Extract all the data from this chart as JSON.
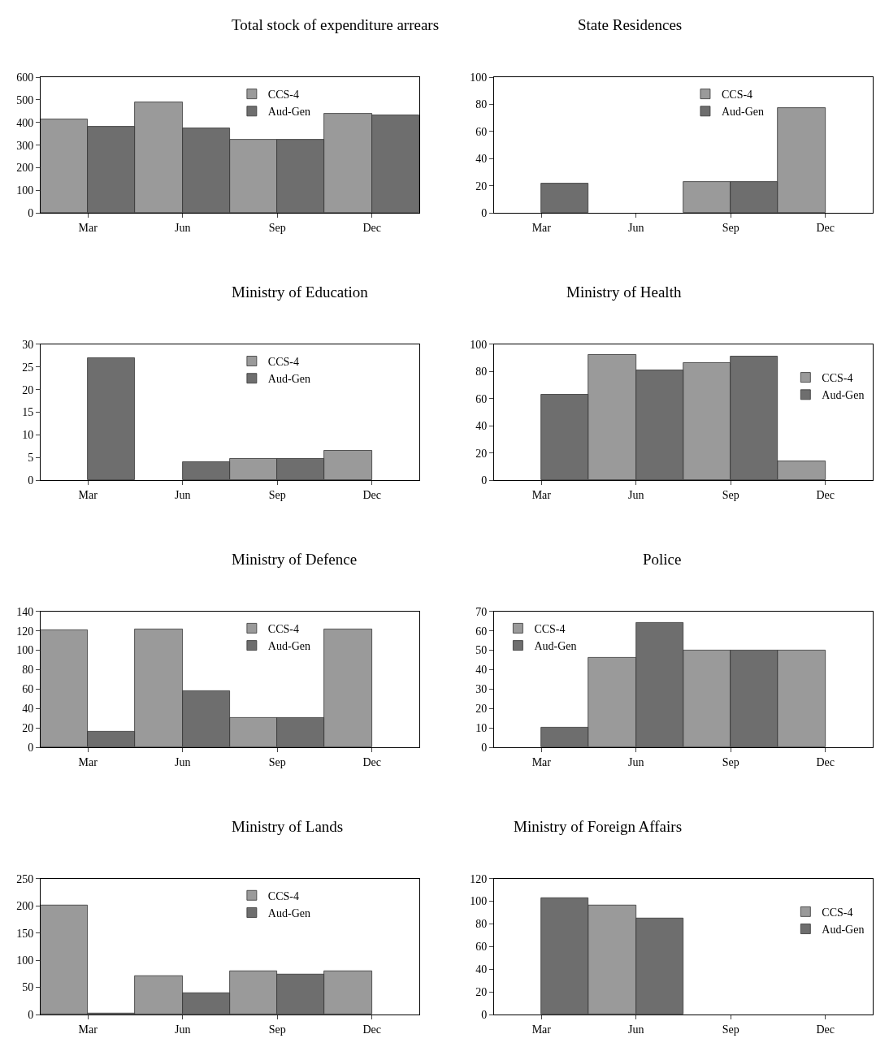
{
  "chart_data": [
    {
      "type": "bar",
      "title": "Total stock of expenditure arrears",
      "categories": [
        "Mar",
        "Jun",
        "Sep",
        "Dec"
      ],
      "ylim": [
        0,
        600
      ],
      "yticks": [
        0,
        100,
        200,
        300,
        400,
        500,
        600
      ],
      "legend": "top",
      "series": [
        {
          "name": "CCS-4",
          "color": "#9a9a9a",
          "values": [
            415,
            490,
            325,
            440
          ]
        },
        {
          "name": "Aud-Gen",
          "color": "#6e6e6e",
          "values": [
            380,
            375,
            325,
            430
          ]
        }
      ]
    },
    {
      "type": "bar",
      "title": "State Residences",
      "categories": [
        "Mar",
        "Jun",
        "Sep",
        "Dec"
      ],
      "ylim": [
        0,
        100
      ],
      "yticks": [
        0,
        20,
        40,
        60,
        80,
        100
      ],
      "legend": "top",
      "series": [
        {
          "name": "CCS-4",
          "color": "#9a9a9a",
          "values": [
            null,
            null,
            23,
            77
          ]
        },
        {
          "name": "Aud-Gen",
          "color": "#6e6e6e",
          "values": [
            22,
            null,
            23,
            null
          ]
        }
      ]
    },
    {
      "type": "bar",
      "title": "Ministry of Education",
      "categories": [
        "Mar",
        "Jun",
        "Sep",
        "Dec"
      ],
      "ylim": [
        0,
        30
      ],
      "yticks": [
        0,
        5,
        10,
        15,
        20,
        25,
        30
      ],
      "legend": "top",
      "series": [
        {
          "name": "CCS-4",
          "color": "#9a9a9a",
          "values": [
            null,
            null,
            4.7,
            6.5
          ]
        },
        {
          "name": "Aud-Gen",
          "color": "#6e6e6e",
          "values": [
            27,
            4,
            4.7,
            null
          ]
        }
      ]
    },
    {
      "type": "bar",
      "title": "Ministry of Health",
      "categories": [
        "Mar",
        "Jun",
        "Sep",
        "Dec"
      ],
      "ylim": [
        0,
        100
      ],
      "yticks": [
        0,
        20,
        40,
        60,
        80,
        100
      ],
      "legend": "top right",
      "series": [
        {
          "name": "CCS-4",
          "color": "#9a9a9a",
          "values": [
            null,
            92,
            86,
            14
          ]
        },
        {
          "name": "Aud-Gen",
          "color": "#6e6e6e",
          "values": [
            63,
            81,
            91,
            null
          ]
        }
      ]
    },
    {
      "type": "bar",
      "title": "Ministry of Defence",
      "categories": [
        "Mar",
        "Jun",
        "Sep",
        "Dec"
      ],
      "ylim": [
        0,
        140
      ],
      "yticks": [
        0,
        20,
        40,
        60,
        80,
        100,
        120,
        140
      ],
      "legend": "top",
      "series": [
        {
          "name": "CCS-4",
          "color": "#9a9a9a",
          "values": [
            121,
            122,
            30,
            122
          ]
        },
        {
          "name": "Aud-Gen",
          "color": "#6e6e6e",
          "values": [
            16,
            58,
            30,
            null
          ]
        }
      ]
    },
    {
      "type": "bar",
      "title": "Police",
      "categories": [
        "Mar",
        "Jun",
        "Sep",
        "Dec"
      ],
      "ylim": [
        0,
        70
      ],
      "yticks": [
        0,
        10,
        20,
        30,
        40,
        50,
        60,
        70
      ],
      "legend": "top left",
      "series": [
        {
          "name": "CCS-4",
          "color": "#9a9a9a",
          "values": [
            null,
            46,
            50,
            50
          ]
        },
        {
          "name": "Aud-Gen",
          "color": "#6e6e6e",
          "values": [
            10,
            64,
            50,
            null
          ]
        }
      ]
    },
    {
      "type": "bar",
      "title": "Ministry of Lands",
      "categories": [
        "Mar",
        "Jun",
        "Sep",
        "Dec"
      ],
      "ylim": [
        0,
        250
      ],
      "yticks": [
        0,
        50,
        100,
        150,
        200,
        250
      ],
      "legend": "top",
      "series": [
        {
          "name": "CCS-4",
          "color": "#9a9a9a",
          "values": [
            200,
            70,
            80,
            80
          ]
        },
        {
          "name": "Aud-Gen",
          "color": "#6e6e6e",
          "values": [
            2,
            40,
            73,
            null
          ]
        }
      ]
    },
    {
      "type": "bar",
      "title": "Ministry of Foreign Affairs",
      "categories": [
        "Mar",
        "Jun",
        "Sep",
        "Dec"
      ],
      "ylim": [
        0,
        120
      ],
      "yticks": [
        0,
        20,
        40,
        60,
        80,
        100,
        120
      ],
      "legend": "top right",
      "series": [
        {
          "name": "CCS-4",
          "color": "#9a9a9a",
          "values": [
            null,
            96,
            null,
            null
          ]
        },
        {
          "name": "Aud-Gen",
          "color": "#6e6e6e",
          "values": [
            103,
            85,
            null,
            null
          ]
        }
      ]
    }
  ]
}
